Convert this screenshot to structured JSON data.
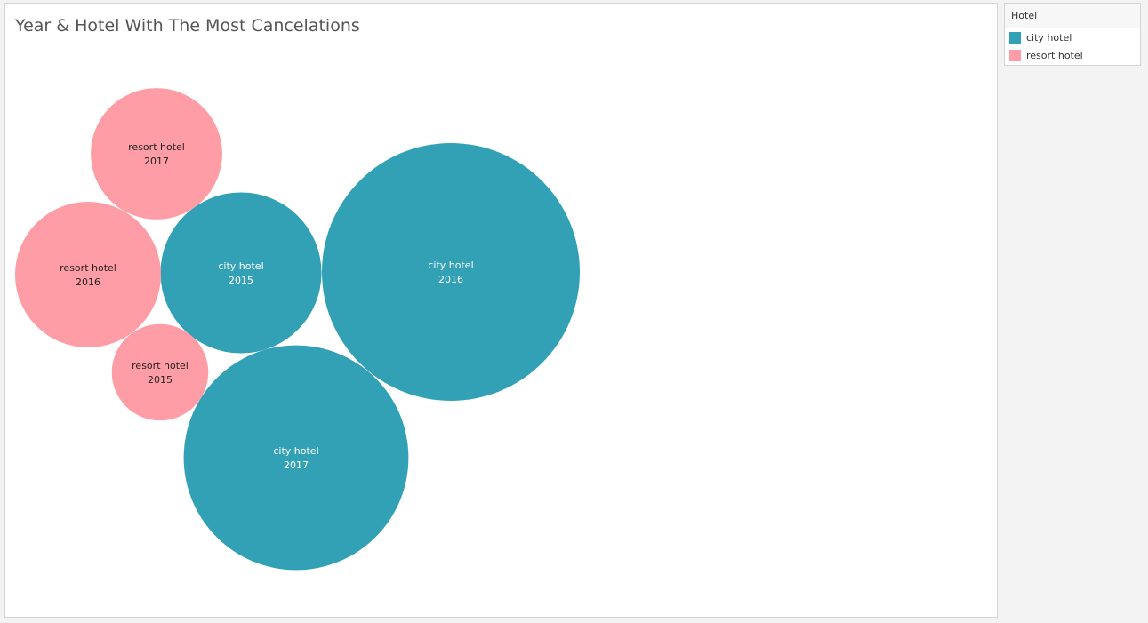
{
  "chart_data": {
    "type": "bubble",
    "title": "Year & Hotel With The Most Cancelations",
    "legend": {
      "title": "Hotel",
      "placement": "right",
      "entries": [
        {
          "name": "city hotel",
          "color": "#33a1b5"
        },
        {
          "name": "resort hotel",
          "color": "#ff9da6"
        }
      ]
    },
    "bubbles": [
      {
        "hotel": "city hotel",
        "year": "2016",
        "value": 100
      },
      {
        "hotel": "city hotel",
        "year": "2017",
        "value": 76
      },
      {
        "hotel": "city hotel",
        "year": "2015",
        "value": 39
      },
      {
        "hotel": "resort hotel",
        "year": "2016",
        "value": 32
      },
      {
        "hotel": "resort hotel",
        "year": "2017",
        "value": 26
      },
      {
        "hotel": "resort hotel",
        "year": "2015",
        "value": 14
      }
    ]
  }
}
